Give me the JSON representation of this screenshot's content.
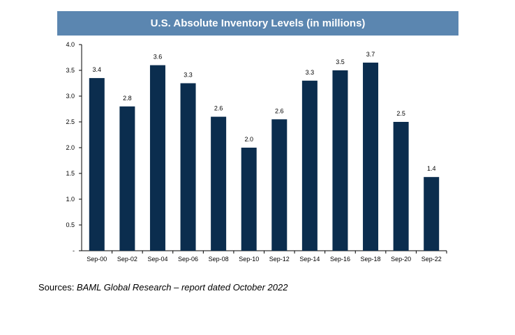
{
  "chart_data": {
    "type": "bar",
    "title": "U.S. Absolute Inventory Levels (in millions)",
    "categories": [
      "Sep-00",
      "Sep-02",
      "Sep-04",
      "Sep-06",
      "Sep-08",
      "Sep-10",
      "Sep-12",
      "Sep-14",
      "Sep-16",
      "Sep-18",
      "Sep-20",
      "Sep-22"
    ],
    "values": [
      3.35,
      2.8,
      3.6,
      3.25,
      2.6,
      2.0,
      2.55,
      3.3,
      3.5,
      3.65,
      2.5,
      1.43
    ],
    "data_labels": [
      "3.4",
      "2.8",
      "3.6",
      "3.3",
      "2.6",
      "2.0",
      "2.6",
      "3.3",
      "3.5",
      "3.7",
      "2.5",
      "1.4"
    ],
    "ylim": [
      0,
      4.0
    ],
    "y_ticks": [
      0,
      0.5,
      1.0,
      1.5,
      2.0,
      2.5,
      3.0,
      3.5,
      4.0
    ],
    "y_tick_labels": [
      "-",
      "0.5",
      "1.0",
      "1.5",
      "2.0",
      "2.5",
      "3.0",
      "3.5",
      "4.0"
    ],
    "grid": false,
    "legend": "none",
    "bar_color": "#0b2d4e"
  },
  "source": {
    "label": "Sources: ",
    "text": "BAML Global Research – report dated October 2022"
  }
}
